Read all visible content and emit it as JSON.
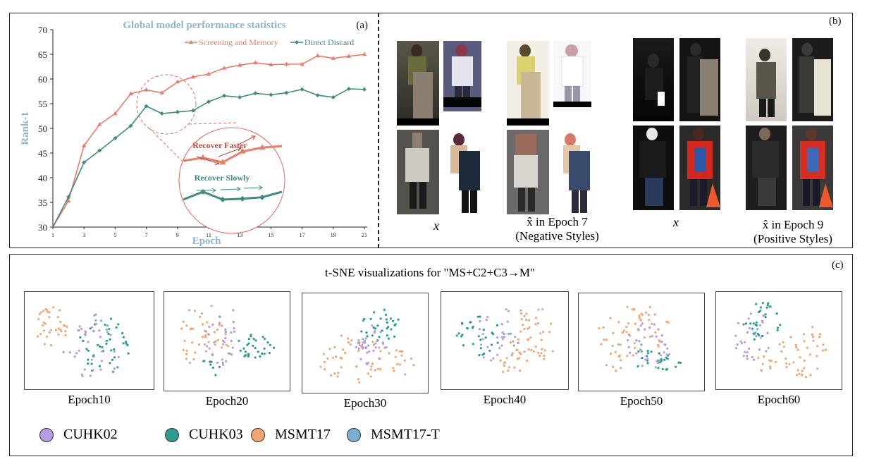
{
  "panel_a": {
    "label": "(a)",
    "chart_data": {
      "type": "line",
      "title": "Global model performance statistics",
      "xlabel": "Epoch",
      "ylabel": "Rank-1",
      "x": [
        1,
        2,
        3,
        4,
        5,
        6,
        7,
        8,
        9,
        10,
        11,
        12,
        13,
        14,
        15,
        16,
        17,
        18,
        19,
        20,
        21
      ],
      "xticks": [
        1,
        3,
        5,
        7,
        9,
        11,
        13,
        15,
        17,
        19,
        21
      ],
      "yticks": [
        30,
        35,
        40,
        45,
        50,
        55,
        60,
        65,
        70
      ],
      "xlim": [
        1,
        21
      ],
      "ylim": [
        30,
        70
      ],
      "legend_position": "top-right",
      "grid": false,
      "series": [
        {
          "name": "Screening and Memory",
          "color": "#ea7d66",
          "values": [
            27.0,
            35.3,
            46.5,
            50.8,
            53.0,
            57.0,
            57.8,
            57.2,
            59.4,
            60.4,
            61.0,
            62.2,
            62.8,
            63.3,
            62.9,
            63.0,
            63.0,
            64.7,
            64.2,
            64.6,
            65.0
          ]
        },
        {
          "name": "Direct Discard",
          "color": "#3f8c7f",
          "values": [
            27.0,
            36.1,
            43.1,
            45.5,
            48.0,
            50.5,
            54.5,
            53.0,
            53.3,
            53.6,
            55.4,
            56.6,
            56.3,
            57.1,
            56.8,
            57.2,
            57.9,
            56.7,
            56.3,
            58.0,
            57.9
          ]
        }
      ],
      "annotations": [
        "Recover Faster",
        "Recover Slowly"
      ]
    },
    "inset": {
      "upper": [
        [
          0,
          2.0
        ],
        [
          1,
          2.4
        ],
        [
          2,
          1.8
        ],
        [
          3,
          3.2
        ],
        [
          4,
          3.7
        ],
        [
          5,
          3.9
        ]
      ],
      "lower": [
        [
          0,
          1.0
        ],
        [
          1,
          2.0
        ],
        [
          2,
          1.0
        ],
        [
          3,
          1.1
        ],
        [
          4,
          1.3
        ],
        [
          5,
          2.0
        ]
      ]
    }
  },
  "panel_b": {
    "label": "(b)",
    "negative_caption_x": "x",
    "negative_caption_line1": "x̂ in Epoch 7",
    "negative_caption_line2": "(Negative Styles)",
    "positive_caption_x": "x",
    "positive_caption_line1": "x̂ in Epoch 9",
    "positive_caption_line2": "(Positive Styles)"
  },
  "panel_c": {
    "label": "(c)",
    "title": "t-SNE visualizations for \"MS+C2+C3→M\"",
    "plots": [
      {
        "caption": "Epoch10"
      },
      {
        "caption": "Epoch20"
      },
      {
        "caption": "Epoch30"
      },
      {
        "caption": "Epoch40"
      },
      {
        "caption": "Epoch50"
      },
      {
        "caption": "Epoch60"
      }
    ],
    "legend": [
      {
        "name": "CUHK02",
        "color": "#b79be6"
      },
      {
        "name": "CUHK03",
        "color": "#2a9d8f"
      },
      {
        "name": "MSMT17",
        "color": "#f4a672"
      },
      {
        "name": "MSMT17-T",
        "color": "#7aaed3"
      }
    ]
  }
}
